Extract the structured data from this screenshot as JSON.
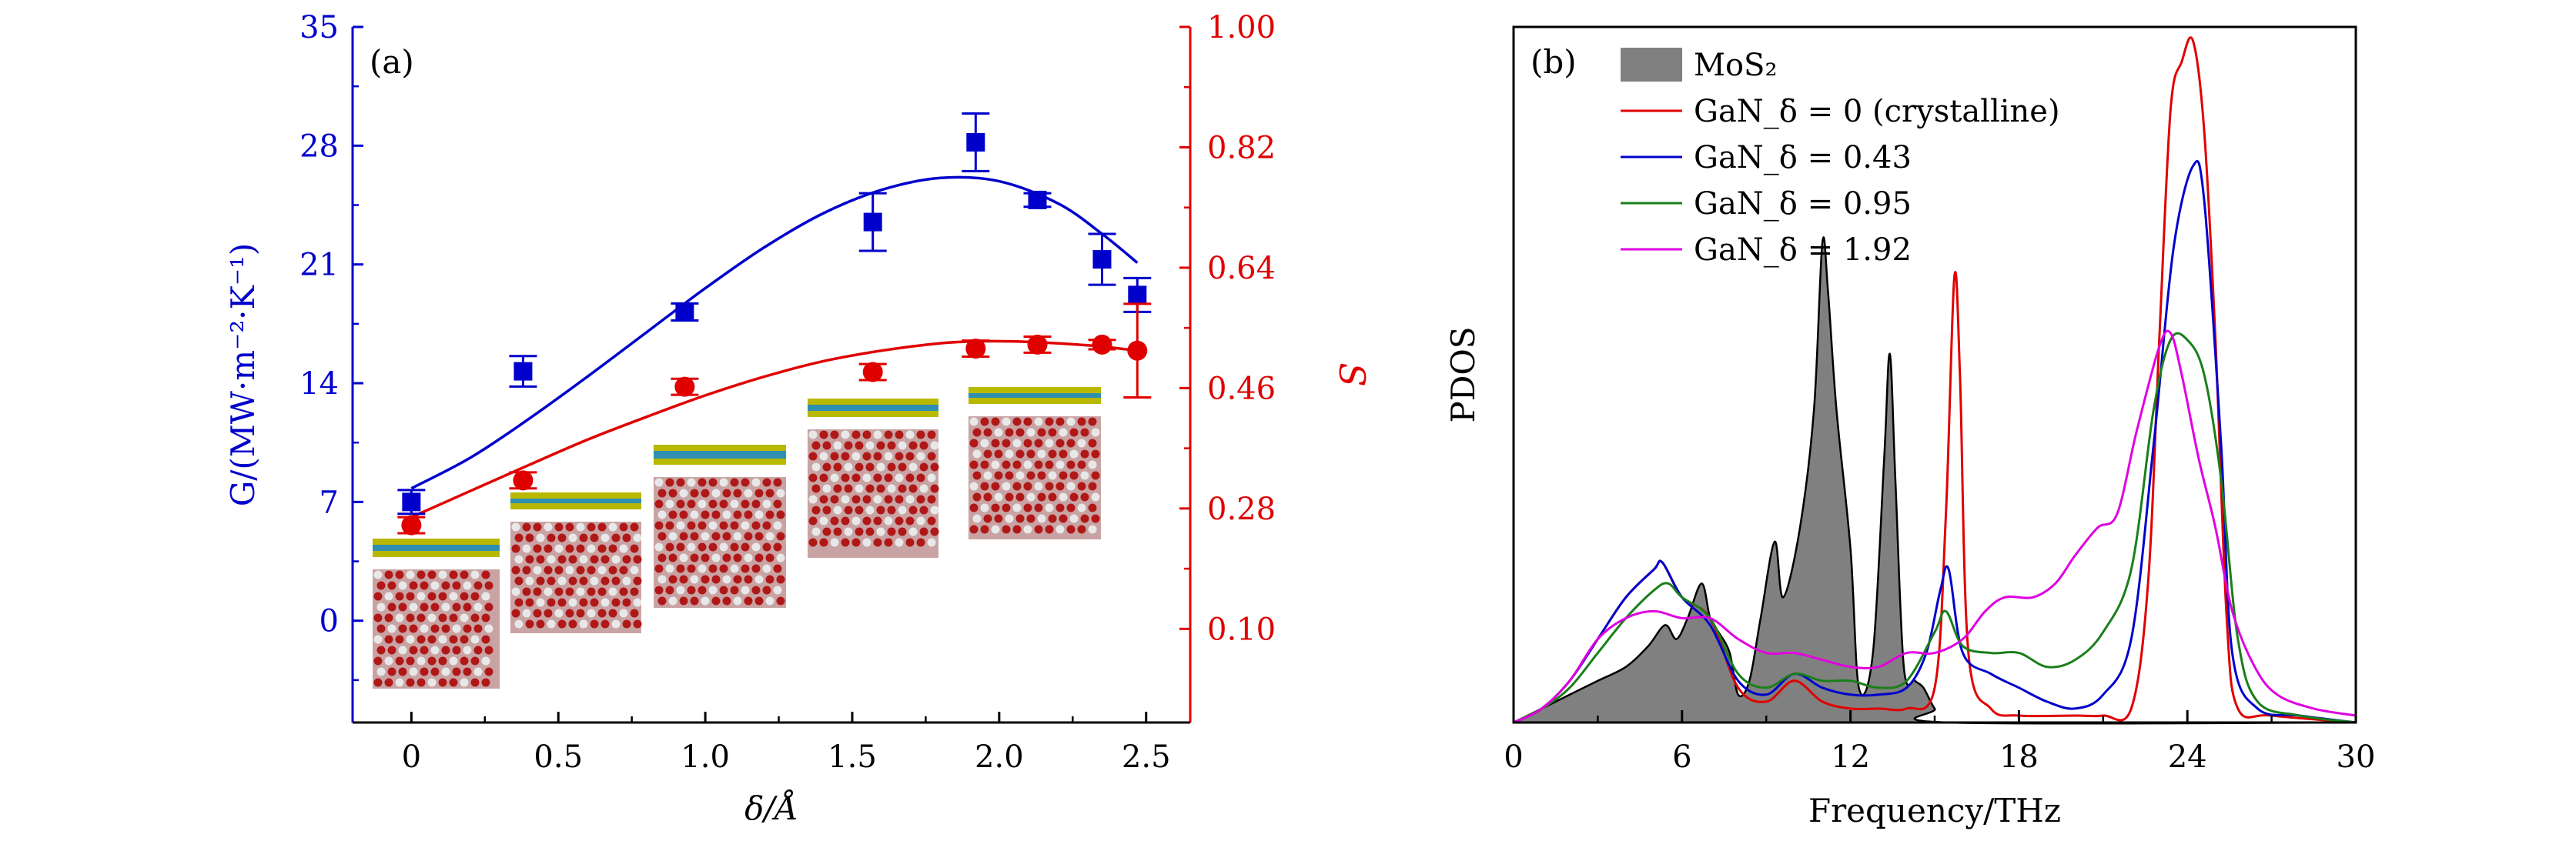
{
  "colors": {
    "blue": "#0000CC",
    "red": "#E00000",
    "green": "#1A7F1A",
    "magenta": "#E000E0",
    "gray_fill": "#808080",
    "black": "#000000"
  },
  "chart_data": [
    {
      "panel": "(a)",
      "type": "scatter",
      "xlabel": "δ/Å",
      "ylabel_left": "G/(MW·m⁻²·K⁻¹)",
      "ylabel_right": "S",
      "xlim": [
        -0.2,
        2.65
      ],
      "ylim_left": [
        -6,
        35
      ],
      "ylim_right": [
        -0.04,
        1.0
      ],
      "x_ticks": [
        0,
        0.5,
        1.0,
        1.5,
        2.0,
        2.5
      ],
      "x_tick_labels": [
        "0",
        "0.5",
        "1.0",
        "1.5",
        "2.0",
        "2.5"
      ],
      "y_left_ticks": [
        0,
        7,
        14,
        21,
        28,
        35
      ],
      "y_left_tick_labels": [
        "0",
        "7",
        "14",
        "21",
        "28",
        "35"
      ],
      "y_right_ticks": [
        0.1,
        0.28,
        0.46,
        0.64,
        0.82,
        1.0
      ],
      "y_right_tick_labels": [
        "0.10",
        "0.28",
        "0.46",
        "0.64",
        "0.82",
        "1.00"
      ],
      "series": [
        {
          "axis": "left",
          "marker": "square",
          "color": "blue",
          "points": [
            {
              "x": 0.0,
              "y": 7.0,
              "err": 0.7
            },
            {
              "x": 0.38,
              "y": 14.7,
              "err": 0.9
            },
            {
              "x": 0.93,
              "y": 18.2,
              "err": 0.5
            },
            {
              "x": 1.57,
              "y": 23.5,
              "err": 1.7
            },
            {
              "x": 1.92,
              "y": 28.2,
              "err": 1.7
            },
            {
              "x": 2.13,
              "y": 24.8,
              "err": 0.4
            },
            {
              "x": 2.35,
              "y": 21.3,
              "err": 1.5
            },
            {
              "x": 2.47,
              "y": 19.2,
              "err": 1.0
            }
          ],
          "fit": [
            [
              0.0,
              7.8
            ],
            [
              0.2,
              9.6
            ],
            [
              0.4,
              11.9
            ],
            [
              0.6,
              14.4
            ],
            [
              0.8,
              17.0
            ],
            [
              1.0,
              19.6
            ],
            [
              1.2,
              22.0
            ],
            [
              1.4,
              24.0
            ],
            [
              1.6,
              25.4
            ],
            [
              1.8,
              26.1
            ],
            [
              2.0,
              25.9
            ],
            [
              2.2,
              24.6
            ],
            [
              2.35,
              22.8
            ],
            [
              2.47,
              21.1
            ]
          ]
        },
        {
          "axis": "right",
          "marker": "circle",
          "color": "red",
          "points": [
            {
              "x": 0.0,
              "y": 0.255,
              "err": 0.012
            },
            {
              "x": 0.38,
              "y": 0.322,
              "err": 0.012
            },
            {
              "x": 0.93,
              "y": 0.462,
              "err": 0.012
            },
            {
              "x": 1.57,
              "y": 0.484,
              "err": 0.012
            },
            {
              "x": 1.92,
              "y": 0.519,
              "err": 0.012
            },
            {
              "x": 2.13,
              "y": 0.525,
              "err": 0.012
            },
            {
              "x": 2.35,
              "y": 0.525,
              "err": 0.007
            },
            {
              "x": 2.47,
              "y": 0.516,
              "err": 0.07
            }
          ],
          "fit": [
            [
              0.0,
              0.267
            ],
            [
              0.2,
              0.306
            ],
            [
              0.4,
              0.345
            ],
            [
              0.6,
              0.383
            ],
            [
              0.8,
              0.417
            ],
            [
              1.0,
              0.449
            ],
            [
              1.2,
              0.477
            ],
            [
              1.4,
              0.5
            ],
            [
              1.6,
              0.516
            ],
            [
              1.8,
              0.527
            ],
            [
              1.95,
              0.53
            ],
            [
              2.1,
              0.529
            ],
            [
              2.3,
              0.524
            ],
            [
              2.47,
              0.516
            ]
          ]
        }
      ]
    },
    {
      "panel": "(b)",
      "type": "area",
      "xlabel": "Frequency/THz",
      "ylabel": "PDOS",
      "xlim": [
        0,
        30
      ],
      "ylim": [
        0,
        1
      ],
      "x_ticks": [
        0,
        6,
        12,
        18,
        24,
        30
      ],
      "x_tick_labels": [
        "0",
        "6",
        "12",
        "18",
        "24",
        "30"
      ],
      "legend_position": "top-left",
      "series": [
        {
          "name": "MoS₂",
          "style": "filled",
          "color": "gray_fill",
          "points": [
            [
              0,
              0
            ],
            [
              1,
              0.02
            ],
            [
              2,
              0.04
            ],
            [
              3,
              0.06
            ],
            [
              4,
              0.08
            ],
            [
              4.8,
              0.11
            ],
            [
              5.4,
              0.14
            ],
            [
              5.8,
              0.12
            ],
            [
              6.2,
              0.15
            ],
            [
              6.7,
              0.2
            ],
            [
              7.0,
              0.15
            ],
            [
              7.3,
              0.13
            ],
            [
              7.7,
              0.1
            ],
            [
              8.0,
              0.04
            ],
            [
              8.4,
              0.06
            ],
            [
              8.8,
              0.15
            ],
            [
              9.3,
              0.26
            ],
            [
              9.6,
              0.18
            ],
            [
              10.2,
              0.28
            ],
            [
              10.7,
              0.45
            ],
            [
              11.0,
              0.69
            ],
            [
              11.2,
              0.62
            ],
            [
              11.5,
              0.45
            ],
            [
              12.0,
              0.25
            ],
            [
              12.3,
              0.05
            ],
            [
              12.8,
              0.1
            ],
            [
              13.2,
              0.38
            ],
            [
              13.4,
              0.53
            ],
            [
              13.6,
              0.35
            ],
            [
              13.9,
              0.08
            ],
            [
              14.3,
              0.06
            ],
            [
              14.6,
              0.05
            ],
            [
              15.0,
              0.02
            ],
            [
              15.5,
              0
            ],
            [
              30,
              0
            ]
          ]
        },
        {
          "name": "GaN_δ = 0 (crystalline)",
          "style": "line",
          "color": "red",
          "points": [
            [
              0,
              0
            ],
            [
              1,
              0.02
            ],
            [
              2,
              0.06
            ],
            [
              3,
              0.12
            ],
            [
              4,
              0.18
            ],
            [
              5,
              0.22
            ],
            [
              5.3,
              0.23
            ],
            [
              6,
              0.18
            ],
            [
              7,
              0.15
            ],
            [
              8,
              0.05
            ],
            [
              9,
              0.03
            ],
            [
              10,
              0.06
            ],
            [
              11,
              0.03
            ],
            [
              12,
              0.02
            ],
            [
              13,
              0.02
            ],
            [
              14,
              0.02
            ],
            [
              15,
              0.05
            ],
            [
              15.4,
              0.3
            ],
            [
              15.7,
              0.64
            ],
            [
              15.9,
              0.5
            ],
            [
              16.2,
              0.1
            ],
            [
              17,
              0.02
            ],
            [
              18,
              0.01
            ],
            [
              20,
              0.01
            ],
            [
              21,
              0.01
            ],
            [
              22,
              0.02
            ],
            [
              22.6,
              0.2
            ],
            [
              23.0,
              0.55
            ],
            [
              23.4,
              0.88
            ],
            [
              23.8,
              0.95
            ],
            [
              24.2,
              0.98
            ],
            [
              24.6,
              0.85
            ],
            [
              25.0,
              0.55
            ],
            [
              25.4,
              0.15
            ],
            [
              25.8,
              0.02
            ],
            [
              27,
              0.01
            ],
            [
              30,
              0
            ]
          ]
        },
        {
          "name": "GaN_δ = 0.43",
          "style": "line",
          "color": "blue",
          "points": [
            [
              0,
              0
            ],
            [
              1,
              0.02
            ],
            [
              2,
              0.06
            ],
            [
              3,
              0.12
            ],
            [
              4,
              0.18
            ],
            [
              5,
              0.22
            ],
            [
              5.3,
              0.23
            ],
            [
              6,
              0.18
            ],
            [
              7,
              0.14
            ],
            [
              8,
              0.06
            ],
            [
              9,
              0.04
            ],
            [
              10,
              0.07
            ],
            [
              11,
              0.05
            ],
            [
              12,
              0.04
            ],
            [
              13,
              0.04
            ],
            [
              14,
              0.05
            ],
            [
              14.7,
              0.1
            ],
            [
              15.2,
              0.19
            ],
            [
              15.5,
              0.22
            ],
            [
              16,
              0.1
            ],
            [
              17,
              0.07
            ],
            [
              18,
              0.05
            ],
            [
              19,
              0.03
            ],
            [
              20,
              0.02
            ],
            [
              21,
              0.04
            ],
            [
              22,
              0.12
            ],
            [
              22.8,
              0.4
            ],
            [
              23.5,
              0.68
            ],
            [
              24.2,
              0.8
            ],
            [
              24.6,
              0.75
            ],
            [
              25.2,
              0.4
            ],
            [
              25.6,
              0.1
            ],
            [
              26.5,
              0.02
            ],
            [
              28,
              0.01
            ],
            [
              30,
              0
            ]
          ]
        },
        {
          "name": "GaN_δ = 0.95",
          "style": "line",
          "color": "green",
          "points": [
            [
              0,
              0
            ],
            [
              1,
              0.02
            ],
            [
              2,
              0.05
            ],
            [
              3,
              0.1
            ],
            [
              4,
              0.15
            ],
            [
              5,
              0.19
            ],
            [
              5.5,
              0.2
            ],
            [
              6,
              0.18
            ],
            [
              7,
              0.15
            ],
            [
              8,
              0.07
            ],
            [
              9,
              0.05
            ],
            [
              10,
              0.07
            ],
            [
              11,
              0.06
            ],
            [
              12,
              0.06
            ],
            [
              13,
              0.05
            ],
            [
              14,
              0.06
            ],
            [
              15.0,
              0.13
            ],
            [
              15.4,
              0.16
            ],
            [
              16,
              0.11
            ],
            [
              17,
              0.1
            ],
            [
              18,
              0.1
            ],
            [
              19,
              0.08
            ],
            [
              20,
              0.09
            ],
            [
              21,
              0.13
            ],
            [
              22,
              0.22
            ],
            [
              22.8,
              0.45
            ],
            [
              23.4,
              0.55
            ],
            [
              24.0,
              0.55
            ],
            [
              24.6,
              0.5
            ],
            [
              25.2,
              0.35
            ],
            [
              25.8,
              0.12
            ],
            [
              26.5,
              0.03
            ],
            [
              28,
              0.01
            ],
            [
              30,
              0
            ]
          ]
        },
        {
          "name": "GaN_δ = 1.92",
          "style": "line",
          "color": "magenta",
          "points": [
            [
              0,
              0
            ],
            [
              1,
              0.02
            ],
            [
              2,
              0.06
            ],
            [
              3,
              0.12
            ],
            [
              4,
              0.15
            ],
            [
              5,
              0.16
            ],
            [
              6,
              0.15
            ],
            [
              7,
              0.15
            ],
            [
              8,
              0.12
            ],
            [
              9,
              0.1
            ],
            [
              10,
              0.1
            ],
            [
              11,
              0.09
            ],
            [
              12,
              0.08
            ],
            [
              13,
              0.08
            ],
            [
              14,
              0.1
            ],
            [
              15,
              0.1
            ],
            [
              16,
              0.12
            ],
            [
              16.8,
              0.16
            ],
            [
              17.5,
              0.18
            ],
            [
              18.5,
              0.18
            ],
            [
              19.3,
              0.2
            ],
            [
              20.0,
              0.24
            ],
            [
              20.8,
              0.28
            ],
            [
              21.5,
              0.3
            ],
            [
              22.2,
              0.42
            ],
            [
              23.0,
              0.54
            ],
            [
              23.4,
              0.56
            ],
            [
              23.8,
              0.5
            ],
            [
              24.4,
              0.38
            ],
            [
              25.0,
              0.28
            ],
            [
              25.6,
              0.16
            ],
            [
              26.4,
              0.08
            ],
            [
              27.2,
              0.04
            ],
            [
              28.5,
              0.02
            ],
            [
              30,
              0.01
            ]
          ]
        }
      ]
    }
  ]
}
